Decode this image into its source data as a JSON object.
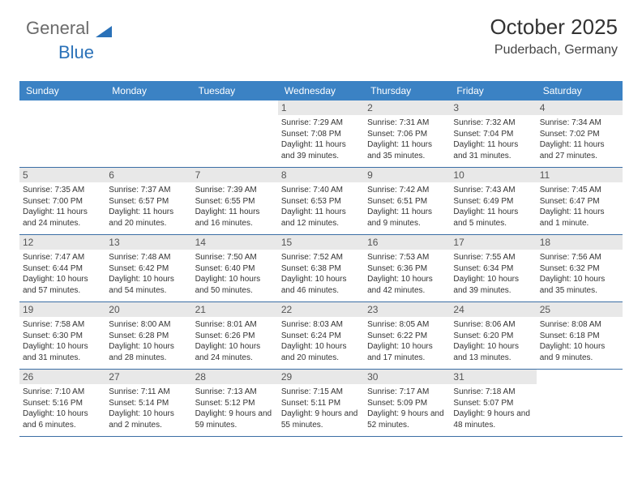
{
  "logo": {
    "part1": "General",
    "part2": "Blue"
  },
  "title": "October 2025",
  "location": "Puderbach, Germany",
  "day_labels": [
    "Sunday",
    "Monday",
    "Tuesday",
    "Wednesday",
    "Thursday",
    "Friday",
    "Saturday"
  ],
  "colors": {
    "header_bg": "#3b82c4",
    "header_text": "#ffffff",
    "daynum_bg": "#e8e8e8",
    "week_border": "#3b6ea5",
    "logo_blue": "#2a71b8"
  },
  "weeks": [
    [
      {
        "n": "",
        "sunrise": "",
        "sunset": "",
        "daylight": ""
      },
      {
        "n": "",
        "sunrise": "",
        "sunset": "",
        "daylight": ""
      },
      {
        "n": "",
        "sunrise": "",
        "sunset": "",
        "daylight": ""
      },
      {
        "n": "1",
        "sunrise": "Sunrise: 7:29 AM",
        "sunset": "Sunset: 7:08 PM",
        "daylight": "Daylight: 11 hours and 39 minutes."
      },
      {
        "n": "2",
        "sunrise": "Sunrise: 7:31 AM",
        "sunset": "Sunset: 7:06 PM",
        "daylight": "Daylight: 11 hours and 35 minutes."
      },
      {
        "n": "3",
        "sunrise": "Sunrise: 7:32 AM",
        "sunset": "Sunset: 7:04 PM",
        "daylight": "Daylight: 11 hours and 31 minutes."
      },
      {
        "n": "4",
        "sunrise": "Sunrise: 7:34 AM",
        "sunset": "Sunset: 7:02 PM",
        "daylight": "Daylight: 11 hours and 27 minutes."
      }
    ],
    [
      {
        "n": "5",
        "sunrise": "Sunrise: 7:35 AM",
        "sunset": "Sunset: 7:00 PM",
        "daylight": "Daylight: 11 hours and 24 minutes."
      },
      {
        "n": "6",
        "sunrise": "Sunrise: 7:37 AM",
        "sunset": "Sunset: 6:57 PM",
        "daylight": "Daylight: 11 hours and 20 minutes."
      },
      {
        "n": "7",
        "sunrise": "Sunrise: 7:39 AM",
        "sunset": "Sunset: 6:55 PM",
        "daylight": "Daylight: 11 hours and 16 minutes."
      },
      {
        "n": "8",
        "sunrise": "Sunrise: 7:40 AM",
        "sunset": "Sunset: 6:53 PM",
        "daylight": "Daylight: 11 hours and 12 minutes."
      },
      {
        "n": "9",
        "sunrise": "Sunrise: 7:42 AM",
        "sunset": "Sunset: 6:51 PM",
        "daylight": "Daylight: 11 hours and 9 minutes."
      },
      {
        "n": "10",
        "sunrise": "Sunrise: 7:43 AM",
        "sunset": "Sunset: 6:49 PM",
        "daylight": "Daylight: 11 hours and 5 minutes."
      },
      {
        "n": "11",
        "sunrise": "Sunrise: 7:45 AM",
        "sunset": "Sunset: 6:47 PM",
        "daylight": "Daylight: 11 hours and 1 minute."
      }
    ],
    [
      {
        "n": "12",
        "sunrise": "Sunrise: 7:47 AM",
        "sunset": "Sunset: 6:44 PM",
        "daylight": "Daylight: 10 hours and 57 minutes."
      },
      {
        "n": "13",
        "sunrise": "Sunrise: 7:48 AM",
        "sunset": "Sunset: 6:42 PM",
        "daylight": "Daylight: 10 hours and 54 minutes."
      },
      {
        "n": "14",
        "sunrise": "Sunrise: 7:50 AM",
        "sunset": "Sunset: 6:40 PM",
        "daylight": "Daylight: 10 hours and 50 minutes."
      },
      {
        "n": "15",
        "sunrise": "Sunrise: 7:52 AM",
        "sunset": "Sunset: 6:38 PM",
        "daylight": "Daylight: 10 hours and 46 minutes."
      },
      {
        "n": "16",
        "sunrise": "Sunrise: 7:53 AM",
        "sunset": "Sunset: 6:36 PM",
        "daylight": "Daylight: 10 hours and 42 minutes."
      },
      {
        "n": "17",
        "sunrise": "Sunrise: 7:55 AM",
        "sunset": "Sunset: 6:34 PM",
        "daylight": "Daylight: 10 hours and 39 minutes."
      },
      {
        "n": "18",
        "sunrise": "Sunrise: 7:56 AM",
        "sunset": "Sunset: 6:32 PM",
        "daylight": "Daylight: 10 hours and 35 minutes."
      }
    ],
    [
      {
        "n": "19",
        "sunrise": "Sunrise: 7:58 AM",
        "sunset": "Sunset: 6:30 PM",
        "daylight": "Daylight: 10 hours and 31 minutes."
      },
      {
        "n": "20",
        "sunrise": "Sunrise: 8:00 AM",
        "sunset": "Sunset: 6:28 PM",
        "daylight": "Daylight: 10 hours and 28 minutes."
      },
      {
        "n": "21",
        "sunrise": "Sunrise: 8:01 AM",
        "sunset": "Sunset: 6:26 PM",
        "daylight": "Daylight: 10 hours and 24 minutes."
      },
      {
        "n": "22",
        "sunrise": "Sunrise: 8:03 AM",
        "sunset": "Sunset: 6:24 PM",
        "daylight": "Daylight: 10 hours and 20 minutes."
      },
      {
        "n": "23",
        "sunrise": "Sunrise: 8:05 AM",
        "sunset": "Sunset: 6:22 PM",
        "daylight": "Daylight: 10 hours and 17 minutes."
      },
      {
        "n": "24",
        "sunrise": "Sunrise: 8:06 AM",
        "sunset": "Sunset: 6:20 PM",
        "daylight": "Daylight: 10 hours and 13 minutes."
      },
      {
        "n": "25",
        "sunrise": "Sunrise: 8:08 AM",
        "sunset": "Sunset: 6:18 PM",
        "daylight": "Daylight: 10 hours and 9 minutes."
      }
    ],
    [
      {
        "n": "26",
        "sunrise": "Sunrise: 7:10 AM",
        "sunset": "Sunset: 5:16 PM",
        "daylight": "Daylight: 10 hours and 6 minutes."
      },
      {
        "n": "27",
        "sunrise": "Sunrise: 7:11 AM",
        "sunset": "Sunset: 5:14 PM",
        "daylight": "Daylight: 10 hours and 2 minutes."
      },
      {
        "n": "28",
        "sunrise": "Sunrise: 7:13 AM",
        "sunset": "Sunset: 5:12 PM",
        "daylight": "Daylight: 9 hours and 59 minutes."
      },
      {
        "n": "29",
        "sunrise": "Sunrise: 7:15 AM",
        "sunset": "Sunset: 5:11 PM",
        "daylight": "Daylight: 9 hours and 55 minutes."
      },
      {
        "n": "30",
        "sunrise": "Sunrise: 7:17 AM",
        "sunset": "Sunset: 5:09 PM",
        "daylight": "Daylight: 9 hours and 52 minutes."
      },
      {
        "n": "31",
        "sunrise": "Sunrise: 7:18 AM",
        "sunset": "Sunset: 5:07 PM",
        "daylight": "Daylight: 9 hours and 48 minutes."
      },
      {
        "n": "",
        "sunrise": "",
        "sunset": "",
        "daylight": ""
      }
    ]
  ]
}
